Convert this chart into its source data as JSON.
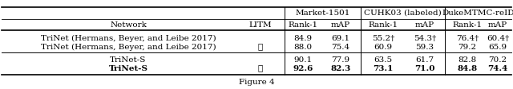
{
  "rows": [
    {
      "network": "TriNet (Hermans, Beyer, and Leibe 2017)",
      "litm": "",
      "r1_market": "84.9",
      "map_market": "69.1",
      "r1_cuhk": "55.2†",
      "map_cuhk": "54.3†",
      "r1_duke": "76.4†",
      "map_duke": "60.4†",
      "bold": false
    },
    {
      "network": "TriNet (Hermans, Beyer, and Leibe 2017)",
      "litm": "✓",
      "r1_market": "88.0",
      "map_market": "75.4",
      "r1_cuhk": "60.9",
      "map_cuhk": "59.3",
      "r1_duke": "79.2",
      "map_duke": "65.9",
      "bold": false
    },
    {
      "network": "TriNet-S",
      "litm": "",
      "r1_market": "90.1",
      "map_market": "77.9",
      "r1_cuhk": "63.5",
      "map_cuhk": "61.7",
      "r1_duke": "82.8",
      "map_duke": "70.2",
      "bold": false
    },
    {
      "network": "TriNet-S",
      "litm": "✓",
      "r1_market": "92.6",
      "map_market": "82.3",
      "r1_cuhk": "73.1",
      "map_cuhk": "71.0",
      "r1_duke": "84.8",
      "map_duke": "74.4",
      "bold": true
    }
  ],
  "group_headers": [
    "Market-1501",
    "CUHK03 (labeled)",
    "DukeMTMC-reID"
  ],
  "sub_headers": [
    "Rank-1",
    "mAP",
    "Rank-1",
    "mAP",
    "Rank-1",
    "mAP"
  ],
  "caption": "Figure 4",
  "background_color": "#ffffff",
  "font_size": 7.5
}
